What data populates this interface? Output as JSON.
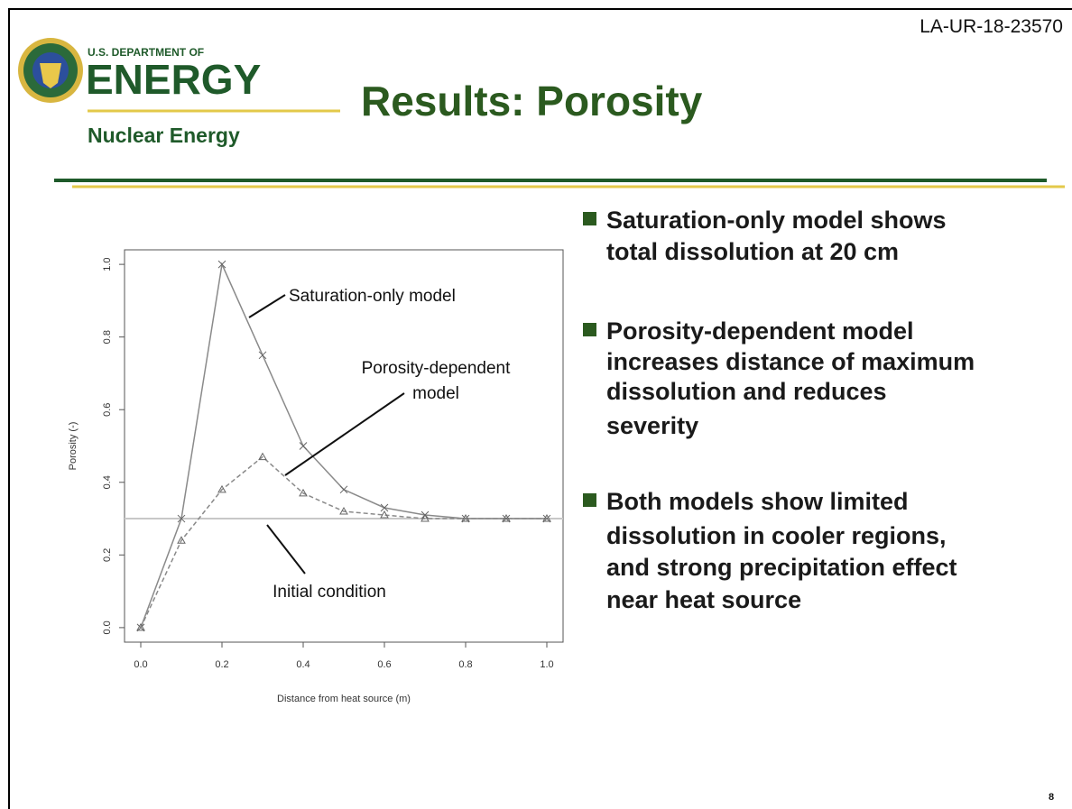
{
  "header": {
    "doc_id": "LA-UR-18-23570",
    "logo_top": "U.S. DEPARTMENT OF",
    "logo_main": "ENERGY",
    "logo_sub": "Nuclear Energy",
    "title": "Results: Porosity"
  },
  "bullets": [
    [
      "Saturation-only model shows",
      "total dissolution at 20 cm"
    ],
    [
      "Porosity-dependent model",
      "increases distance of maximum",
      "dissolution and reduces",
      "severity"
    ],
    [
      "Both models show limited",
      "dissolution in cooler regions,",
      "and strong precipitation effect",
      "near heat source"
    ]
  ],
  "page_number": "8",
  "chart_data": {
    "type": "line",
    "x_label": "Distance from heat source (m)",
    "y_label": "Porosity (-)",
    "x": [
      0,
      0.1,
      0.2,
      0.3,
      0.4,
      0.5,
      0.6,
      0.7,
      0.8,
      0.9,
      1.0
    ],
    "series": [
      {
        "name": "Saturation-only model",
        "color": "#8a8a8a",
        "marker": "x",
        "dashed": false,
        "values": [
          0,
          0.3,
          1.0,
          0.75,
          0.5,
          0.38,
          0.33,
          0.31,
          0.3,
          0.3,
          0.3
        ]
      },
      {
        "name": "Porosity-dependent model",
        "color": "#8a8a8a",
        "marker": "triangle",
        "dashed": true,
        "values": [
          0,
          0.24,
          0.38,
          0.47,
          0.37,
          0.32,
          0.31,
          0.3,
          0.3,
          0.3,
          0.3
        ]
      }
    ],
    "reference_line": {
      "value": 0.3,
      "label": "Initial condition",
      "color": "#c8c8c8"
    },
    "xlim": [
      -0.04,
      1.04
    ],
    "ylim": [
      -0.04,
      1.04
    ],
    "xticks": [
      {
        "value": 0,
        "label": "0.0"
      },
      0.2,
      0.4,
      0.6,
      0.8,
      {
        "value": 1,
        "label": "1.0"
      }
    ],
    "yticks": [
      {
        "value": 0,
        "label": "0.0"
      },
      0.2,
      0.4,
      0.6,
      0.8,
      {
        "value": 1,
        "label": "1.0"
      }
    ]
  }
}
